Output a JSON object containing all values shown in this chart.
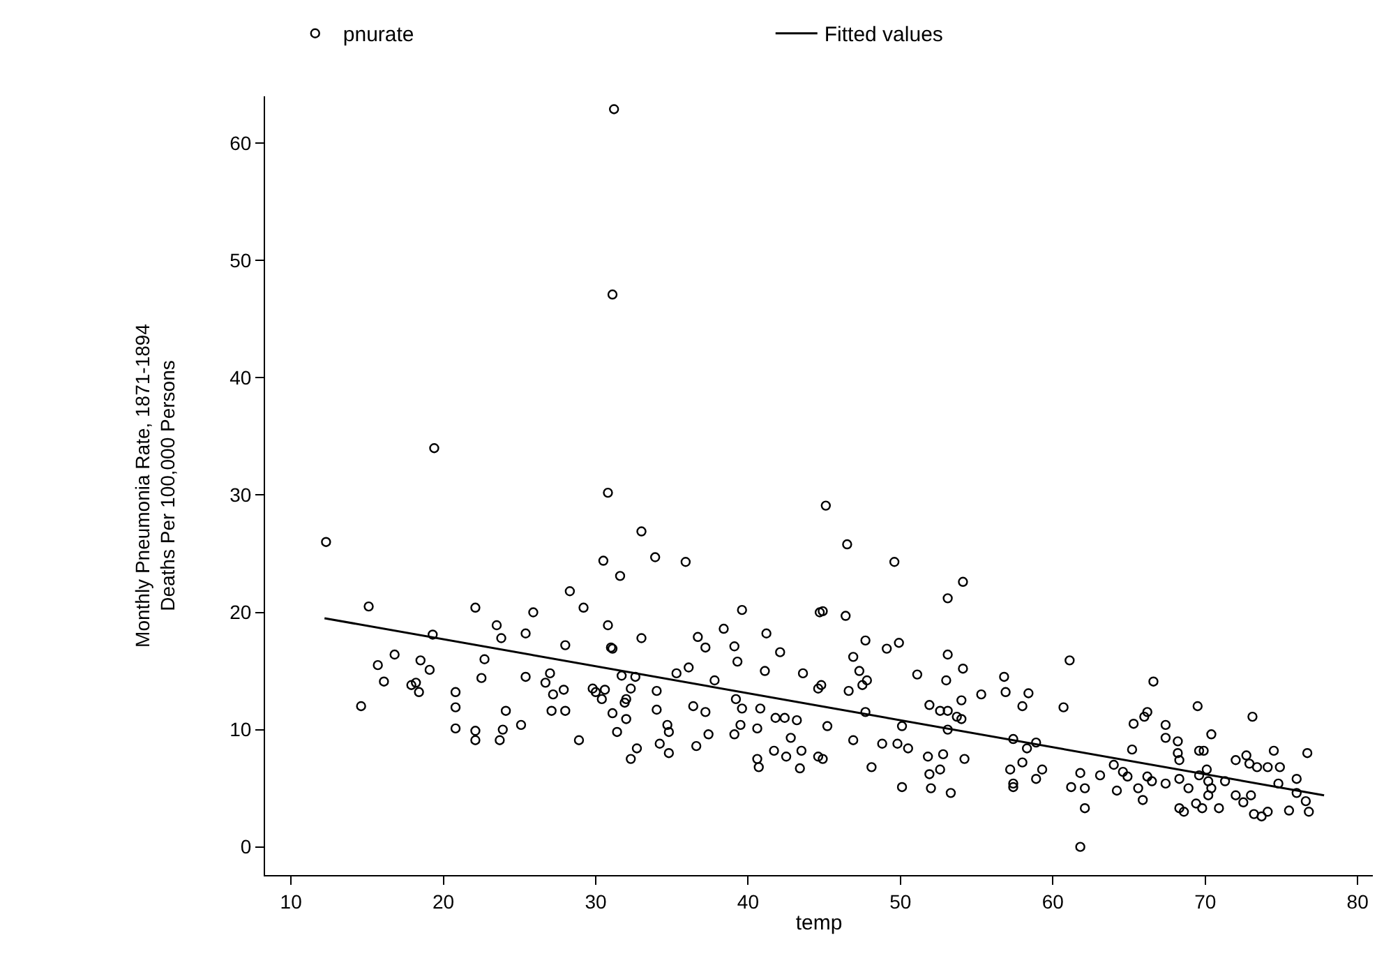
{
  "chart_data": {
    "type": "scatter",
    "xlabel": "temp",
    "ylabel": "Monthly Pneumonia Rate, 1871-1894\nDeaths Per 100,000 Persons",
    "xlim": [
      8.3,
      81
    ],
    "ylim": [
      -2.4,
      64
    ],
    "xticks": [
      10,
      20,
      30,
      40,
      50,
      60,
      70,
      80
    ],
    "yticks": [
      0,
      10,
      20,
      30,
      40,
      50,
      60
    ],
    "legend": "top",
    "marker": "circle",
    "series": [
      {
        "name": "pnurate",
        "color": "#000000",
        "x": [
          12.3,
          15.1,
          14.6,
          15.7,
          16.1,
          16.8,
          17.9,
          18.2,
          18.4,
          18.5,
          19.1,
          19.3,
          20.8,
          20.8,
          20.8,
          22.1,
          22.1,
          22.1,
          22.5,
          22.7,
          23.5,
          23.8,
          23.9,
          23.7,
          24.1,
          25.1,
          25.4,
          25.4,
          25.9,
          26.7,
          27.0,
          27.2,
          27.1,
          28.0,
          27.9,
          28.0,
          28.3,
          28.9,
          29.2,
          29.8,
          30.0,
          30.4,
          30.6,
          30.5,
          30.8,
          30.8,
          31.0,
          31.1,
          31.1,
          31.4,
          31.6,
          31.7,
          31.9,
          32.0,
          32.0,
          32.3,
          32.3,
          32.6,
          32.7,
          33.0,
          33.0,
          33.9,
          34.0,
          34.0,
          34.2,
          34.8,
          34.7,
          34.8,
          35.3,
          35.9,
          36.1,
          36.4,
          36.6,
          36.7,
          37.2,
          37.2,
          37.4,
          37.8,
          38.4,
          39.1,
          39.3,
          39.1,
          39.2,
          39.6,
          39.5,
          39.6,
          40.6,
          40.6,
          40.7,
          40.8,
          41.1,
          41.2,
          41.7,
          41.8,
          42.4,
          42.1,
          42.5,
          42.8,
          43.2,
          43.4,
          43.5,
          43.6,
          44.6,
          44.6,
          44.7,
          31.2,
          31.1,
          19.4,
          45.1,
          46.5,
          49.6,
          54.1,
          53.1,
          44.9,
          46.4,
          47.7,
          46.9,
          49.1,
          49.9,
          53.1,
          47.3,
          47.8,
          47.5,
          44.8,
          46.6,
          51.1,
          53.0,
          54.1,
          55.3,
          56.8,
          56.9,
          58.4,
          58.0,
          60.7,
          61.1,
          45.2,
          46.9,
          44.9,
          47.7,
          48.8,
          48.1,
          50.1,
          49.8,
          50.5,
          50.1,
          51.8,
          51.9,
          52.6,
          52.8,
          51.9,
          52.6,
          53.1,
          53.7,
          54.0,
          54.0,
          53.1,
          52.0,
          53.3,
          54.2,
          57.4,
          57.4,
          58.3,
          58.9,
          57.2,
          57.4,
          58.0,
          58.9,
          59.3,
          61.2,
          61.8,
          62.1,
          62.1,
          61.8,
          63.1,
          64.0,
          64.6,
          64.9,
          65.2,
          64.2,
          65.6,
          65.9,
          66.2,
          66.5,
          65.3,
          66.0,
          66.2,
          66.6,
          67.4,
          67.4,
          68.2,
          68.2,
          68.3,
          67.4,
          68.3,
          68.9,
          69.6,
          70.1,
          68.3,
          68.6,
          69.4,
          69.8,
          70.9,
          69.5,
          69.6,
          69.9,
          70.4,
          70.2,
          70.4,
          70.2,
          71.3,
          72.0,
          72.0,
          72.5,
          72.7,
          72.9,
          73.4,
          73.1,
          73.0,
          73.2,
          73.7,
          74.1,
          74.1,
          74.5,
          74.9,
          74.8,
          75.5,
          76.0,
          76.0,
          76.6,
          76.8,
          76.7
        ],
        "values": [
          26.0,
          20.5,
          12.0,
          15.5,
          14.1,
          16.4,
          13.8,
          14.0,
          13.2,
          15.9,
          15.1,
          18.1,
          13.2,
          11.9,
          10.1,
          20.4,
          9.9,
          9.1,
          14.4,
          16.0,
          18.9,
          17.8,
          10.0,
          9.1,
          11.6,
          10.4,
          14.5,
          18.2,
          20.0,
          14.0,
          14.8,
          13.0,
          11.6,
          11.6,
          13.4,
          17.2,
          21.8,
          9.1,
          20.4,
          13.5,
          13.2,
          12.6,
          13.4,
          24.4,
          30.2,
          18.9,
          17.0,
          16.9,
          11.4,
          9.8,
          23.1,
          14.6,
          12.3,
          12.6,
          10.9,
          7.5,
          13.5,
          14.5,
          8.4,
          26.9,
          17.8,
          24.7,
          13.3,
          11.7,
          8.8,
          8.0,
          10.4,
          9.8,
          14.8,
          24.3,
          15.3,
          12.0,
          8.6,
          17.9,
          17.0,
          11.5,
          9.6,
          14.2,
          18.6,
          17.1,
          15.8,
          9.6,
          12.6,
          11.8,
          10.4,
          20.2,
          10.1,
          7.5,
          6.8,
          11.8,
          15.0,
          18.2,
          8.2,
          11.0,
          11.0,
          16.6,
          7.7,
          9.3,
          10.8,
          6.7,
          8.2,
          14.8,
          7.7,
          13.5,
          20.0,
          62.9,
          47.1,
          34.0,
          29.1,
          25.8,
          24.3,
          22.6,
          21.2,
          20.1,
          19.7,
          17.6,
          16.2,
          16.9,
          17.4,
          16.4,
          15.0,
          14.2,
          13.8,
          13.8,
          13.3,
          14.7,
          14.2,
          15.2,
          13.0,
          14.5,
          13.2,
          13.1,
          12.0,
          11.9,
          15.9,
          10.3,
          9.1,
          7.5,
          11.5,
          8.8,
          6.8,
          10.3,
          8.8,
          8.4,
          5.1,
          7.7,
          6.2,
          6.6,
          7.9,
          12.1,
          11.6,
          11.6,
          11.1,
          12.5,
          10.9,
          10.0,
          5.0,
          4.6,
          7.5,
          5.1,
          9.2,
          8.4,
          8.9,
          6.6,
          5.4,
          7.2,
          5.8,
          6.6,
          5.1,
          6.3,
          5.0,
          3.3,
          0.0,
          6.1,
          7.0,
          6.4,
          6.0,
          8.3,
          4.8,
          5.0,
          4.0,
          6.0,
          5.6,
          10.5,
          11.1,
          11.5,
          14.1,
          10.4,
          9.3,
          9.0,
          8.0,
          7.4,
          5.4,
          5.8,
          5.0,
          6.1,
          6.6,
          3.3,
          3.0,
          3.7,
          3.3,
          3.3,
          12.0,
          8.2,
          8.2,
          9.6,
          5.6,
          5.0,
          4.4,
          5.6,
          7.4,
          4.4,
          3.8,
          7.8,
          7.1,
          6.8,
          11.1,
          4.4,
          2.8,
          2.6,
          3.0,
          6.8,
          8.2,
          6.8,
          5.4,
          3.1,
          5.8,
          4.6,
          3.9,
          3.0,
          8.0
        ]
      },
      {
        "name": "Fitted values",
        "type": "line",
        "color": "#000000",
        "marker": "none",
        "line_style": "solid",
        "x": [
          12.2,
          77.8
        ],
        "values": [
          19.5,
          4.4
        ]
      }
    ]
  }
}
